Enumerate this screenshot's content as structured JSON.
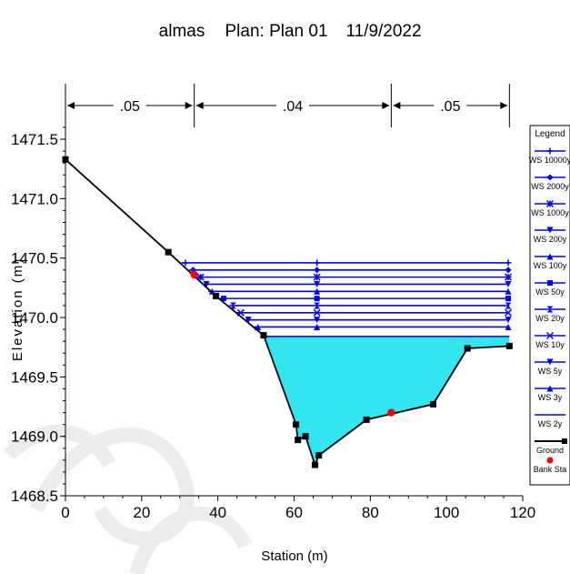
{
  "title": {
    "project": "almas",
    "plan": "Plan: Plan 01",
    "date": "11/9/2022"
  },
  "legend_title": "Legend",
  "chart_data": {
    "type": "line",
    "xlabel": "Station (m)",
    "ylabel": "Elevation (m)",
    "xlim": [
      0,
      120
    ],
    "ylim": [
      1468.5,
      1471.6
    ],
    "xticks": [
      "0",
      "20",
      "40",
      "60",
      "80",
      "100",
      "120"
    ],
    "yticks": [
      "1468.5",
      "1469.0",
      "1469.5",
      "1470.0",
      "1470.5",
      "1471.0",
      "1471.5"
    ],
    "manning_n": [
      {
        "label": ".05",
        "from": 0,
        "to": 33.8
      },
      {
        "label": ".04",
        "from": 33.8,
        "to": 85.5
      },
      {
        "label": ".05",
        "from": 85.5,
        "to": 116.5
      }
    ],
    "ground": {
      "name": "Ground",
      "color": "#000000",
      "x": [
        0,
        27,
        39.5,
        52,
        60.5,
        61,
        63,
        65.5,
        66.5,
        79,
        96.5,
        105.5,
        116.5
      ],
      "y": [
        1471.33,
        1470.55,
        1470.18,
        1469.85,
        1469.1,
        1468.97,
        1469.0,
        1468.76,
        1468.84,
        1469.14,
        1469.27,
        1469.74,
        1469.76
      ]
    },
    "bank_stations": {
      "name": "Bank Sta",
      "color": "#ff0000",
      "points": [
        [
          33.8,
          1470.36
        ],
        [
          85.5,
          1469.2
        ]
      ]
    },
    "water_surfaces": [
      {
        "name": "WS 10000y",
        "elevation": 1470.46,
        "start_x": 30.5,
        "marker": "plus"
      },
      {
        "name": "WS 2000y",
        "elevation": 1470.4,
        "start_x": 32.5,
        "marker": "diamond"
      },
      {
        "name": "WS 1000y",
        "elevation": 1470.34,
        "start_x": 34.5,
        "marker": "star"
      },
      {
        "name": "WS 200y",
        "elevation": 1470.28,
        "start_x": 36,
        "marker": "tri-down"
      },
      {
        "name": "WS 100y",
        "elevation": 1470.22,
        "start_x": 37.5,
        "marker": "tri-up"
      },
      {
        "name": "WS 50y",
        "elevation": 1470.16,
        "start_x": 40.5,
        "marker": "square"
      },
      {
        "name": "WS 20y",
        "elevation": 1470.1,
        "start_x": 43,
        "marker": "hourglass"
      },
      {
        "name": "WS 10y",
        "elevation": 1470.04,
        "start_x": 45,
        "marker": "x"
      },
      {
        "name": "WS 5y",
        "elevation": 1469.98,
        "start_x": 47,
        "marker": "tri-down"
      },
      {
        "name": "WS 3y",
        "elevation": 1469.92,
        "start_x": 49.5,
        "marker": "tri-up"
      },
      {
        "name": "WS 2y",
        "elevation": 1469.84,
        "start_x": 52,
        "marker": "none",
        "filled": true
      }
    ],
    "line_color": "#0000ff",
    "fill_color": "#33e5ef",
    "grid": false,
    "legend_position": "right"
  }
}
